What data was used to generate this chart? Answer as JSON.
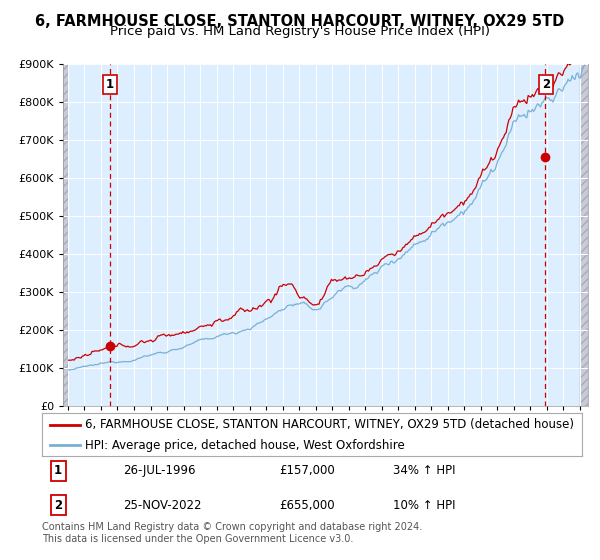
{
  "title_line1": "6, FARMHOUSE CLOSE, STANTON HARCOURT, WITNEY, OX29 5TD",
  "title_line2": "Price paid vs. HM Land Registry's House Price Index (HPI)",
  "legend_red": "6, FARMHOUSE CLOSE, STANTON HARCOURT, WITNEY, OX29 5TD (detached house)",
  "legend_blue": "HPI: Average price, detached house, West Oxfordshire",
  "sale1_date": "26-JUL-1996",
  "sale1_price": 157000,
  "sale1_hpi_text": "34% ↑ HPI",
  "sale2_date": "25-NOV-2022",
  "sale2_price": 655000,
  "sale2_hpi_text": "10% ↑ HPI",
  "sale1_date_num": 1996.57,
  "sale2_date_num": 2022.9,
  "ylim": [
    0,
    900000
  ],
  "yticks": [
    0,
    100000,
    200000,
    300000,
    400000,
    500000,
    600000,
    700000,
    800000,
    900000
  ],
  "xlim_start": 1993.7,
  "xlim_end": 2025.5,
  "red_color": "#cc0000",
  "blue_color": "#7ab0d4",
  "dashed_color": "#cc0000",
  "plot_bg": "#ddeeff",
  "grid_color": "#ffffff",
  "footnote": "Contains HM Land Registry data © Crown copyright and database right 2024.\nThis data is licensed under the Open Government Licence v3.0.",
  "title_fontsize": 10.5,
  "subtitle_fontsize": 9.5,
  "tick_fontsize": 8,
  "legend_fontsize": 8.5,
  "table_fontsize": 8.5,
  "footnote_fontsize": 7
}
